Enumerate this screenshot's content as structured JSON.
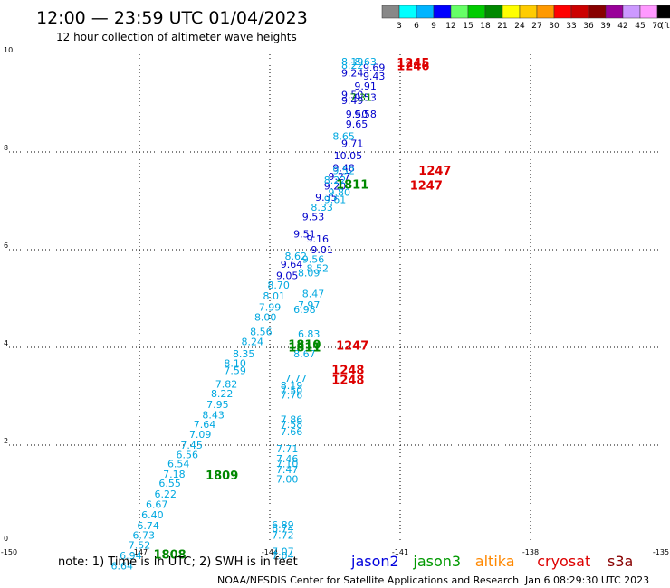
{
  "chart_data": {
    "type": "scatter",
    "title": "12:00 — 23:59 UTC 01/04/2023",
    "subtitle": "12 hour collection of altimeter wave heights",
    "xlim": [
      -150,
      -135
    ],
    "ylim": [
      0,
      10
    ],
    "x_ticks": [
      "-150",
      "-147",
      "-144",
      "-141",
      "-138",
      "-135"
    ],
    "y_ticks": [
      "0",
      "2",
      "4",
      "6",
      "8",
      "10"
    ],
    "grid": "dotted",
    "colorbar": {
      "unit": "(ft)",
      "labels": [
        "3",
        "6",
        "9",
        "12",
        "15",
        "18",
        "21",
        "24",
        "27",
        "30",
        "33",
        "36",
        "39",
        "42",
        "45",
        "70"
      ],
      "colors": [
        "#888888",
        "#00ffff",
        "#00b4ff",
        "#0000ff",
        "#66ff66",
        "#00cc00",
        "#008800",
        "#ffff00",
        "#ffcc00",
        "#ff9900",
        "#ff0000",
        "#cc0000",
        "#880000",
        "#990099",
        "#cc99ff",
        "#ff99ff",
        "#000000"
      ]
    },
    "series": [
      {
        "name": "jason2",
        "color": "#0000cc",
        "points": [
          {
            "x": -142.1,
            "y": 9.55,
            "label": "9.24"
          },
          {
            "x": -141.6,
            "y": 9.48,
            "label": "9.43"
          },
          {
            "x": -141.6,
            "y": 9.66,
            "label": "9.69"
          },
          {
            "x": -141.8,
            "y": 9.28,
            "label": "9.91"
          },
          {
            "x": -142.1,
            "y": 9.1,
            "label": "9.50"
          },
          {
            "x": -141.8,
            "y": 9.05,
            "label": "9.53"
          },
          {
            "x": -142.1,
            "y": 8.98,
            "label": "9.49"
          },
          {
            "x": -142.0,
            "y": 8.7,
            "label": "9.50"
          },
          {
            "x": -141.8,
            "y": 8.7,
            "label": "9.58"
          },
          {
            "x": -142.0,
            "y": 8.5,
            "label": "9.65"
          },
          {
            "x": -142.1,
            "y": 8.1,
            "label": "9.71"
          },
          {
            "x": -142.2,
            "y": 7.85,
            "label": "10.05"
          },
          {
            "x": -142.3,
            "y": 7.6,
            "label": "9.48"
          },
          {
            "x": -142.4,
            "y": 7.43,
            "label": "9.27"
          },
          {
            "x": -142.5,
            "y": 7.23,
            "label": "9.20"
          },
          {
            "x": -142.7,
            "y": 7.0,
            "label": "9.35"
          },
          {
            "x": -143.0,
            "y": 6.6,
            "label": "9.53"
          },
          {
            "x": -143.2,
            "y": 6.25,
            "label": "9.51"
          },
          {
            "x": -142.9,
            "y": 6.15,
            "label": "9.16"
          },
          {
            "x": -142.8,
            "y": 5.93,
            "label": "9.01"
          },
          {
            "x": -143.5,
            "y": 5.63,
            "label": "9.64"
          },
          {
            "x": -143.6,
            "y": 5.4,
            "label": "9.05"
          }
        ]
      },
      {
        "name": "jason2-light",
        "color": "#00a8e0",
        "points": [
          {
            "x": -142.1,
            "y": 9.78,
            "label": "8.19"
          },
          {
            "x": -141.8,
            "y": 9.78,
            "label": "8.63"
          },
          {
            "x": -142.1,
            "y": 9.7,
            "label": "8.22"
          },
          {
            "x": -142.3,
            "y": 8.25,
            "label": "8.65"
          },
          {
            "x": -142.3,
            "y": 7.55,
            "label": "9.52"
          },
          {
            "x": -142.5,
            "y": 7.35,
            "label": "8.22"
          },
          {
            "x": -142.4,
            "y": 7.1,
            "label": "9.80"
          },
          {
            "x": -142.5,
            "y": 6.95,
            "label": "9.61"
          },
          {
            "x": -142.8,
            "y": 6.8,
            "label": "8.33"
          },
          {
            "x": -143.4,
            "y": 5.8,
            "label": "8.62"
          },
          {
            "x": -143.0,
            "y": 5.73,
            "label": "9.56"
          },
          {
            "x": -142.9,
            "y": 5.55,
            "label": "8.52"
          },
          {
            "x": -143.1,
            "y": 5.45,
            "label": "8.09"
          },
          {
            "x": -143.8,
            "y": 5.2,
            "label": "8.70"
          },
          {
            "x": -143.9,
            "y": 4.98,
            "label": "8.01"
          },
          {
            "x": -143.0,
            "y": 5.03,
            "label": "8.47"
          },
          {
            "x": -144.0,
            "y": 4.75,
            "label": "7.99"
          },
          {
            "x": -143.1,
            "y": 4.8,
            "label": "7.97"
          },
          {
            "x": -143.2,
            "y": 4.7,
            "label": "6.98"
          },
          {
            "x": -144.1,
            "y": 4.55,
            "label": "8.00"
          },
          {
            "x": -144.2,
            "y": 4.25,
            "label": "8.56"
          },
          {
            "x": -143.1,
            "y": 4.2,
            "label": "6.83"
          },
          {
            "x": -144.4,
            "y": 4.05,
            "label": "8.24"
          },
          {
            "x": -144.6,
            "y": 3.8,
            "label": "8.35"
          },
          {
            "x": -143.2,
            "y": 3.8,
            "label": "8.67"
          },
          {
            "x": -144.8,
            "y": 3.6,
            "label": "8.10"
          },
          {
            "x": -144.8,
            "y": 3.45,
            "label": "7.59"
          },
          {
            "x": -143.4,
            "y": 3.3,
            "label": "7.77"
          },
          {
            "x": -145.0,
            "y": 3.18,
            "label": "7.82"
          },
          {
            "x": -143.5,
            "y": 3.15,
            "label": "8.19"
          },
          {
            "x": -143.5,
            "y": 3.05,
            "label": "7.50"
          },
          {
            "x": -145.1,
            "y": 2.98,
            "label": "8.22"
          },
          {
            "x": -143.5,
            "y": 2.95,
            "label": "7.76"
          },
          {
            "x": -145.2,
            "y": 2.76,
            "label": "7.95"
          },
          {
            "x": -145.3,
            "y": 2.55,
            "label": "8.43"
          },
          {
            "x": -143.5,
            "y": 2.45,
            "label": "7.86"
          },
          {
            "x": -145.5,
            "y": 2.35,
            "label": "7.64"
          },
          {
            "x": -143.5,
            "y": 2.35,
            "label": "7.58"
          },
          {
            "x": -143.5,
            "y": 2.2,
            "label": "7.66"
          },
          {
            "x": -145.6,
            "y": 2.15,
            "label": "7.09"
          },
          {
            "x": -145.8,
            "y": 1.93,
            "label": "7.45"
          },
          {
            "x": -143.6,
            "y": 1.85,
            "label": "7.71"
          },
          {
            "x": -145.9,
            "y": 1.73,
            "label": "6.56"
          },
          {
            "x": -143.6,
            "y": 1.65,
            "label": "7.46"
          },
          {
            "x": -143.6,
            "y": 1.55,
            "label": "7.10"
          },
          {
            "x": -146.1,
            "y": 1.55,
            "label": "6.54"
          },
          {
            "x": -143.6,
            "y": 1.43,
            "label": "7.47"
          },
          {
            "x": -146.2,
            "y": 1.33,
            "label": "7.18"
          },
          {
            "x": -143.6,
            "y": 1.23,
            "label": "7.00"
          },
          {
            "x": -146.3,
            "y": 1.15,
            "label": "6.55"
          },
          {
            "x": -146.4,
            "y": 0.93,
            "label": "6.22"
          },
          {
            "x": -146.6,
            "y": 0.71,
            "label": "6.67"
          },
          {
            "x": -146.7,
            "y": 0.5,
            "label": "6.40"
          },
          {
            "x": -146.8,
            "y": 0.28,
            "label": "6.74"
          },
          {
            "x": -143.7,
            "y": 0.3,
            "label": "6.89"
          },
          {
            "x": -143.7,
            "y": 0.22,
            "label": "6.74"
          },
          {
            "x": -143.7,
            "y": 0.08,
            "label": "7.72"
          },
          {
            "x": -146.9,
            "y": 0.08,
            "label": "6.73"
          },
          {
            "x": -147.0,
            "y": -0.12,
            "label": "7.52"
          },
          {
            "x": -143.7,
            "y": -0.25,
            "label": "7.07"
          },
          {
            "x": -143.7,
            "y": -0.33,
            "label": "7.04"
          },
          {
            "x": -147.2,
            "y": -0.33,
            "label": "6.94"
          },
          {
            "x": -147.4,
            "y": -0.55,
            "label": "6.64"
          }
        ]
      },
      {
        "name": "jason3",
        "color": "#008800",
        "points": [
          {
            "x": -141.9,
            "y": 9.05,
            "label": "7.31"
          },
          {
            "x": -142.1,
            "y": 7.25,
            "label": "1811"
          },
          {
            "x": -143.2,
            "y": 3.97,
            "label": "1810"
          },
          {
            "x": -143.2,
            "y": 3.92,
            "label": "1811"
          },
          {
            "x": -145.1,
            "y": 1.3,
            "label": "1809"
          },
          {
            "x": -146.3,
            "y": -0.32,
            "label": "1808"
          }
        ]
      },
      {
        "name": "cryosat",
        "color": "#dd0000",
        "points": [
          {
            "x": -140.7,
            "y": 9.74,
            "label": "1245"
          },
          {
            "x": -140.7,
            "y": 9.68,
            "label": "1246"
          },
          {
            "x": -140.2,
            "y": 7.54,
            "label": "1247"
          },
          {
            "x": -140.4,
            "y": 7.23,
            "label": "1247"
          },
          {
            "x": -142.1,
            "y": 3.95,
            "label": "1247"
          },
          {
            "x": -142.2,
            "y": 3.45,
            "label": "1248"
          },
          {
            "x": -142.2,
            "y": 3.25,
            "label": "1248"
          }
        ]
      }
    ]
  },
  "legend": {
    "note": "note: 1) Time is in UTC; 2) SWH is in feet",
    "items": [
      {
        "name": "jason2",
        "color": "#0000dd"
      },
      {
        "name": "jason3",
        "color": "#009900"
      },
      {
        "name": "altika",
        "color": "#ff8800"
      },
      {
        "name": "cryosat",
        "color": "#dd0000"
      },
      {
        "name": "s3a",
        "color": "#880000"
      }
    ]
  },
  "footer": {
    "credit": "NOAA/NESDIS Center for Satellite Applications and Research",
    "timestamp": "Jan  6 08:29:30 UTC 2023"
  }
}
